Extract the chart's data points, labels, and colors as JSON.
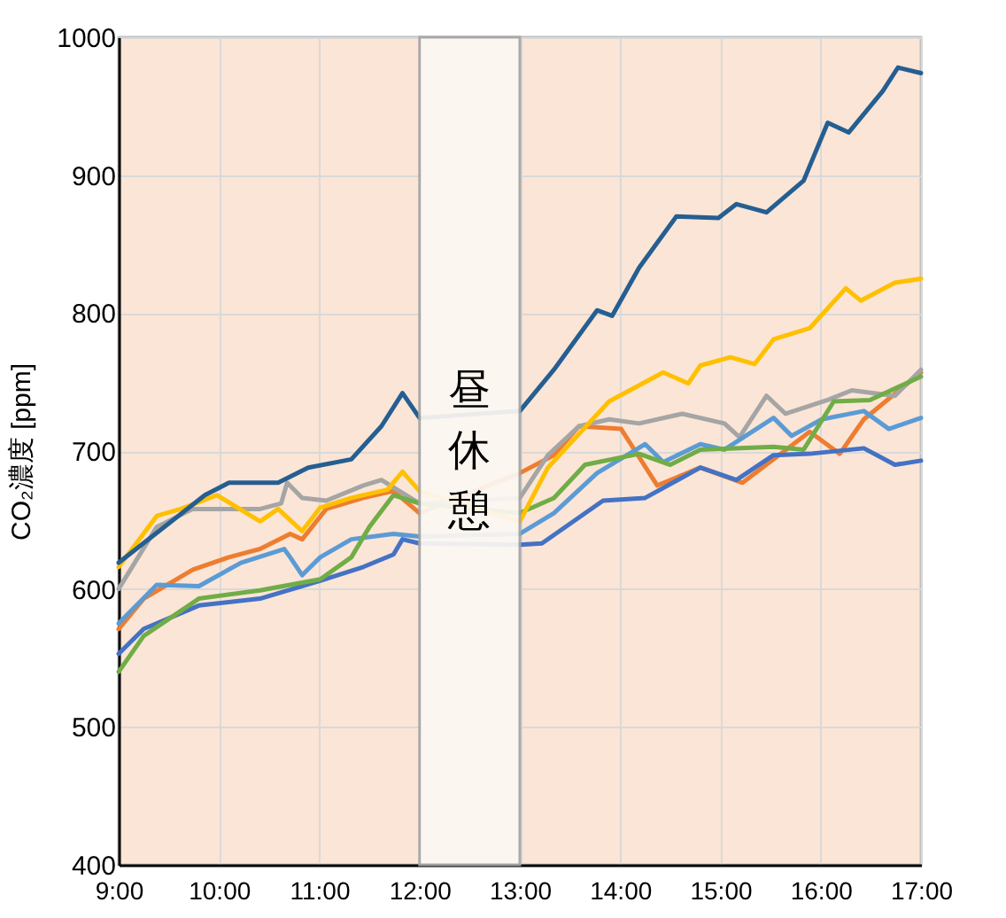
{
  "chart_data": {
    "type": "line",
    "ylabel": "CO₂濃度 [ppm]",
    "xlim": [
      9,
      17
    ],
    "xticks": [
      {
        "value": 9,
        "label": "9:00"
      },
      {
        "value": 10,
        "label": "10:00"
      },
      {
        "value": 11,
        "label": "11:00"
      },
      {
        "value": 12,
        "label": "12:00"
      },
      {
        "value": 13,
        "label": "13:00"
      },
      {
        "value": 14,
        "label": "14:00"
      },
      {
        "value": 15,
        "label": "15:00"
      },
      {
        "value": 16,
        "label": "16:00"
      },
      {
        "value": 17,
        "label": "17:00"
      }
    ],
    "ylim": [
      400,
      1000
    ],
    "yticks": [
      400,
      500,
      600,
      700,
      800,
      900,
      1000
    ],
    "grid": true,
    "legend": false,
    "series": [
      {
        "color": "#ed7d31",
        "x": [
          9.0,
          9.25,
          9.74,
          10.1,
          10.41,
          10.71,
          10.83,
          11.07,
          11.44,
          11.74,
          12.0,
          13.0,
          13.34,
          13.59,
          14.01,
          14.37,
          14.8,
          15.22,
          15.53,
          15.89,
          16.19,
          16.43,
          17.0
        ],
        "values": [
          571,
          593,
          614,
          623,
          629,
          640,
          636,
          658,
          666,
          671,
          655,
          684,
          697,
          718,
          716,
          675,
          688,
          677,
          694,
          714,
          698,
          723,
          757
        ]
      },
      {
        "color": "#a5a5a5",
        "x": [
          9.0,
          9.38,
          9.74,
          10.41,
          10.62,
          10.68,
          10.83,
          11.07,
          11.44,
          11.62,
          12.0,
          13.0,
          13.28,
          13.59,
          13.89,
          14.19,
          14.62,
          15.04,
          15.19,
          15.46,
          15.65,
          16.07,
          16.31,
          16.74,
          17.0
        ],
        "values": [
          600,
          645,
          658,
          658,
          662,
          677,
          666,
          664,
          675,
          679,
          662,
          666,
          697,
          718,
          723,
          720,
          727,
          720,
          710,
          740,
          727,
          737,
          744,
          740,
          759
        ]
      },
      {
        "color": "#5b9bd5",
        "x": [
          9.0,
          9.38,
          9.8,
          10.22,
          10.65,
          10.71,
          10.83,
          11.01,
          11.32,
          11.74,
          12.0,
          13.0,
          13.34,
          13.77,
          14.25,
          14.43,
          14.8,
          15.04,
          15.53,
          15.71,
          16.01,
          16.43,
          16.68,
          17.0
        ],
        "values": [
          575,
          603,
          602,
          619,
          629,
          623,
          610,
          623,
          636,
          640,
          638,
          640,
          655,
          684,
          705,
          692,
          705,
          701,
          724,
          711,
          723,
          729,
          716,
          724
        ]
      },
      {
        "color": "#4472c4",
        "x": [
          9.0,
          9.25,
          9.8,
          10.41,
          11.01,
          11.44,
          11.74,
          11.83,
          12.0,
          13.0,
          13.22,
          13.83,
          14.25,
          14.8,
          15.16,
          15.53,
          15.89,
          16.43,
          16.74,
          17.0
        ],
        "values": [
          553,
          571,
          588,
          593,
          606,
          616,
          625,
          636,
          633,
          632,
          633,
          664,
          666,
          688,
          679,
          697,
          698,
          702,
          690,
          693
        ]
      },
      {
        "color": "#70ad47",
        "x": [
          9.0,
          9.25,
          9.8,
          10.41,
          11.01,
          11.32,
          11.5,
          11.74,
          12.0,
          13.0,
          13.34,
          13.65,
          14.19,
          14.5,
          14.8,
          15.53,
          15.83,
          16.13,
          16.49,
          17.0
        ],
        "values": [
          540,
          566,
          593,
          599,
          607,
          623,
          645,
          668,
          662,
          655,
          666,
          690,
          698,
          690,
          701,
          703,
          701,
          736,
          737,
          754
        ]
      },
      {
        "color": "#ffc000",
        "x": [
          9.0,
          9.38,
          9.62,
          9.98,
          10.41,
          10.59,
          10.83,
          11.01,
          11.32,
          11.68,
          11.83,
          12.0,
          13.0,
          13.28,
          13.89,
          14.43,
          14.68,
          14.8,
          15.1,
          15.34,
          15.53,
          15.89,
          16.25,
          16.4,
          16.74,
          17.0
        ],
        "values": [
          616,
          653,
          658,
          668,
          649,
          658,
          642,
          659,
          666,
          672,
          685,
          671,
          649,
          688,
          736,
          757,
          749,
          762,
          768,
          763,
          781,
          789,
          818,
          809,
          822,
          825
        ]
      },
      {
        "color": "#255e91",
        "x": [
          9.0,
          9.86,
          10.1,
          10.59,
          10.89,
          11.32,
          11.62,
          11.83,
          12.0,
          13.0,
          13.34,
          13.77,
          13.92,
          14.19,
          14.56,
          14.98,
          15.16,
          15.46,
          15.83,
          16.07,
          16.28,
          16.62,
          16.77,
          17.0
        ],
        "values": [
          619,
          668,
          677,
          677,
          688,
          694,
          718,
          742,
          724,
          729,
          759,
          802,
          798,
          833,
          870,
          869,
          879,
          873,
          896,
          938,
          931,
          961,
          978,
          974
        ]
      }
    ],
    "bands": [
      {
        "axis": "x",
        "from": 12,
        "to": 13,
        "label": "昼休憩",
        "color": "#fdf8f4"
      }
    ]
  }
}
